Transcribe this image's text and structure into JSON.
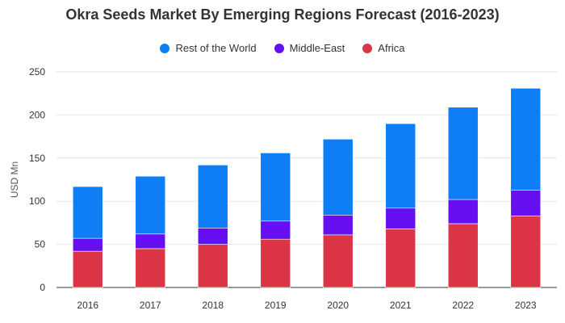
{
  "chart_data": {
    "type": "bar",
    "stacked": true,
    "title": "Okra Seeds Market By Emerging Regions Forecast (2016-2023)",
    "ylabel": "USD Mn",
    "xlabel": "",
    "ylim": [
      0,
      250
    ],
    "yticks": [
      0,
      50,
      100,
      150,
      200,
      250
    ],
    "grid": true,
    "legend_position": "top",
    "categories": [
      "2016",
      "2017",
      "2018",
      "2019",
      "2020",
      "2021",
      "2022",
      "2023"
    ],
    "series": [
      {
        "name": "Africa",
        "color": "#dc3545",
        "values": [
          42,
          45,
          50,
          56,
          61,
          68,
          74,
          83
        ]
      },
      {
        "name": "Middle-East",
        "color": "#6610f2",
        "values": [
          15,
          17,
          19,
          21,
          23,
          24,
          28,
          30
        ]
      },
      {
        "name": "Rest of the World",
        "color": "#0d7ef5",
        "values": [
          60,
          67,
          73,
          79,
          88,
          98,
          107,
          118
        ]
      }
    ],
    "legend_order": [
      "Rest of the World",
      "Middle-East",
      "Africa"
    ]
  }
}
